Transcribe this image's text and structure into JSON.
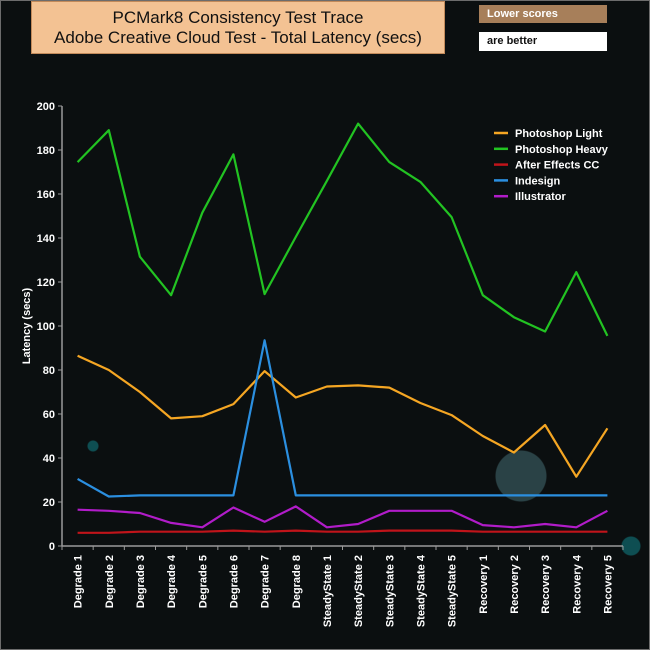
{
  "title_line1": "PCMark8 Consistency Test Trace",
  "title_line2": "Adobe Creative Cloud Test -  Total Latency (secs)",
  "note_line1": "Lower scores",
  "note_line2": "are better",
  "chart_data": {
    "type": "line",
    "title": "PCMark8 Consistency Test Trace Adobe Creative Cloud Test -  Total Latency (secs)",
    "xlabel": "",
    "ylabel": "Latency (secs)",
    "ylim": [
      0,
      200
    ],
    "yticks": [
      0,
      20,
      40,
      60,
      80,
      100,
      120,
      140,
      160,
      180,
      200
    ],
    "grid": false,
    "legend_position": "top-right",
    "categories": [
      "Degrade 1",
      "Degrade 2",
      "Degrade 3",
      "Degrade 4",
      "Degrade 5",
      "Degrade 6",
      "Degrade 7",
      "Degrade 8",
      "SteadyState 1",
      "SteadyState 2",
      "SteadyState 3",
      "SteadyState 4",
      "SteadyState 5",
      "Recovery 1",
      "Recovery 2",
      "Recovery 3",
      "Recovery 4",
      "Recovery 5"
    ],
    "series": [
      {
        "name": "Photoshop Light",
        "color": "#f5a623",
        "values": [
          86.5,
          80,
          70,
          58,
          59,
          64.5,
          79.5,
          67.5,
          72.5,
          73,
          72,
          65,
          59.5,
          50,
          42.5,
          55,
          31.5,
          53.5
        ]
      },
      {
        "name": "Photoshop Heavy",
        "color": "#22c322",
        "values": [
          174.5,
          189,
          131.5,
          114,
          151.5,
          178,
          114.5,
          140.5,
          166,
          192,
          174.5,
          165.5,
          149.5,
          114,
          104,
          97.5,
          124.5,
          95.5
        ]
      },
      {
        "name": "After Effects CC",
        "color": "#c0141a",
        "values": [
          6,
          6,
          6.5,
          6.5,
          6.5,
          7,
          6.5,
          7,
          6.5,
          6.5,
          7,
          7,
          7,
          6.5,
          6.5,
          6.5,
          6.5,
          6.5
        ]
      },
      {
        "name": "Indesign",
        "color": "#2b8fe0",
        "values": [
          30.5,
          22.5,
          23,
          23,
          23,
          23,
          93.5,
          23,
          23,
          23,
          23,
          23,
          23,
          23,
          23,
          23,
          23,
          23
        ]
      },
      {
        "name": "Illustrator",
        "color": "#b11cc9",
        "values": [
          16.5,
          16,
          15,
          10.5,
          8.5,
          17.5,
          11,
          18,
          8.5,
          10,
          16,
          16,
          16,
          9.5,
          8.5,
          10,
          8.5,
          16
        ]
      }
    ]
  }
}
